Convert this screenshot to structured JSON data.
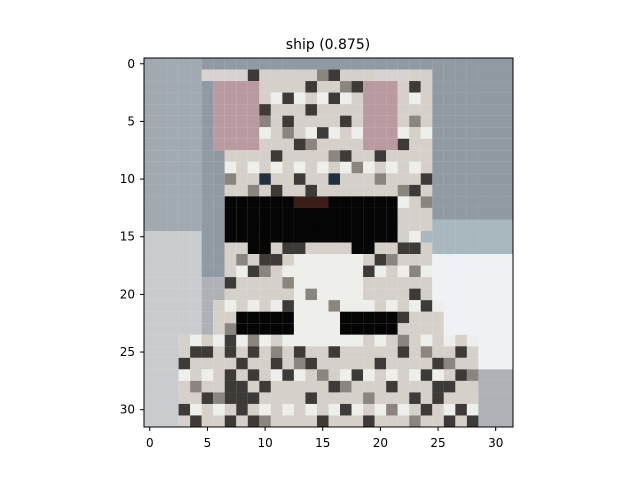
{
  "chart_data": {
    "type": "heatmap",
    "title": "ship (0.875)",
    "xlabel": "",
    "ylabel": "",
    "image_size": [
      32,
      32
    ],
    "xlim": [
      -0.5,
      31.5
    ],
    "ylim": [
      31.5,
      -0.5
    ],
    "xticks": [
      0,
      5,
      10,
      15,
      20,
      25,
      30
    ],
    "yticks": [
      0,
      5,
      10,
      15,
      20,
      25,
      30
    ],
    "xtick_labels": [
      "0",
      "5",
      "10",
      "15",
      "20",
      "25",
      "30"
    ],
    "ytick_labels": [
      "0",
      "5",
      "10",
      "15",
      "20",
      "25",
      "30"
    ],
    "grid": false,
    "predicted_label": "ship",
    "confidence": 0.875,
    "colors": {
      "background_blue_gray": "#8f9aa3",
      "floor_white": "#eef2f5",
      "cat_light_gray": "#d6d0cb",
      "cat_mid_gray": "#8b8580",
      "cat_dark_stripe": "#3d3a38",
      "ear_pink": "#b99aa0",
      "sunglasses_black": "#050505",
      "nose_brown": "#3c1d17"
    }
  }
}
